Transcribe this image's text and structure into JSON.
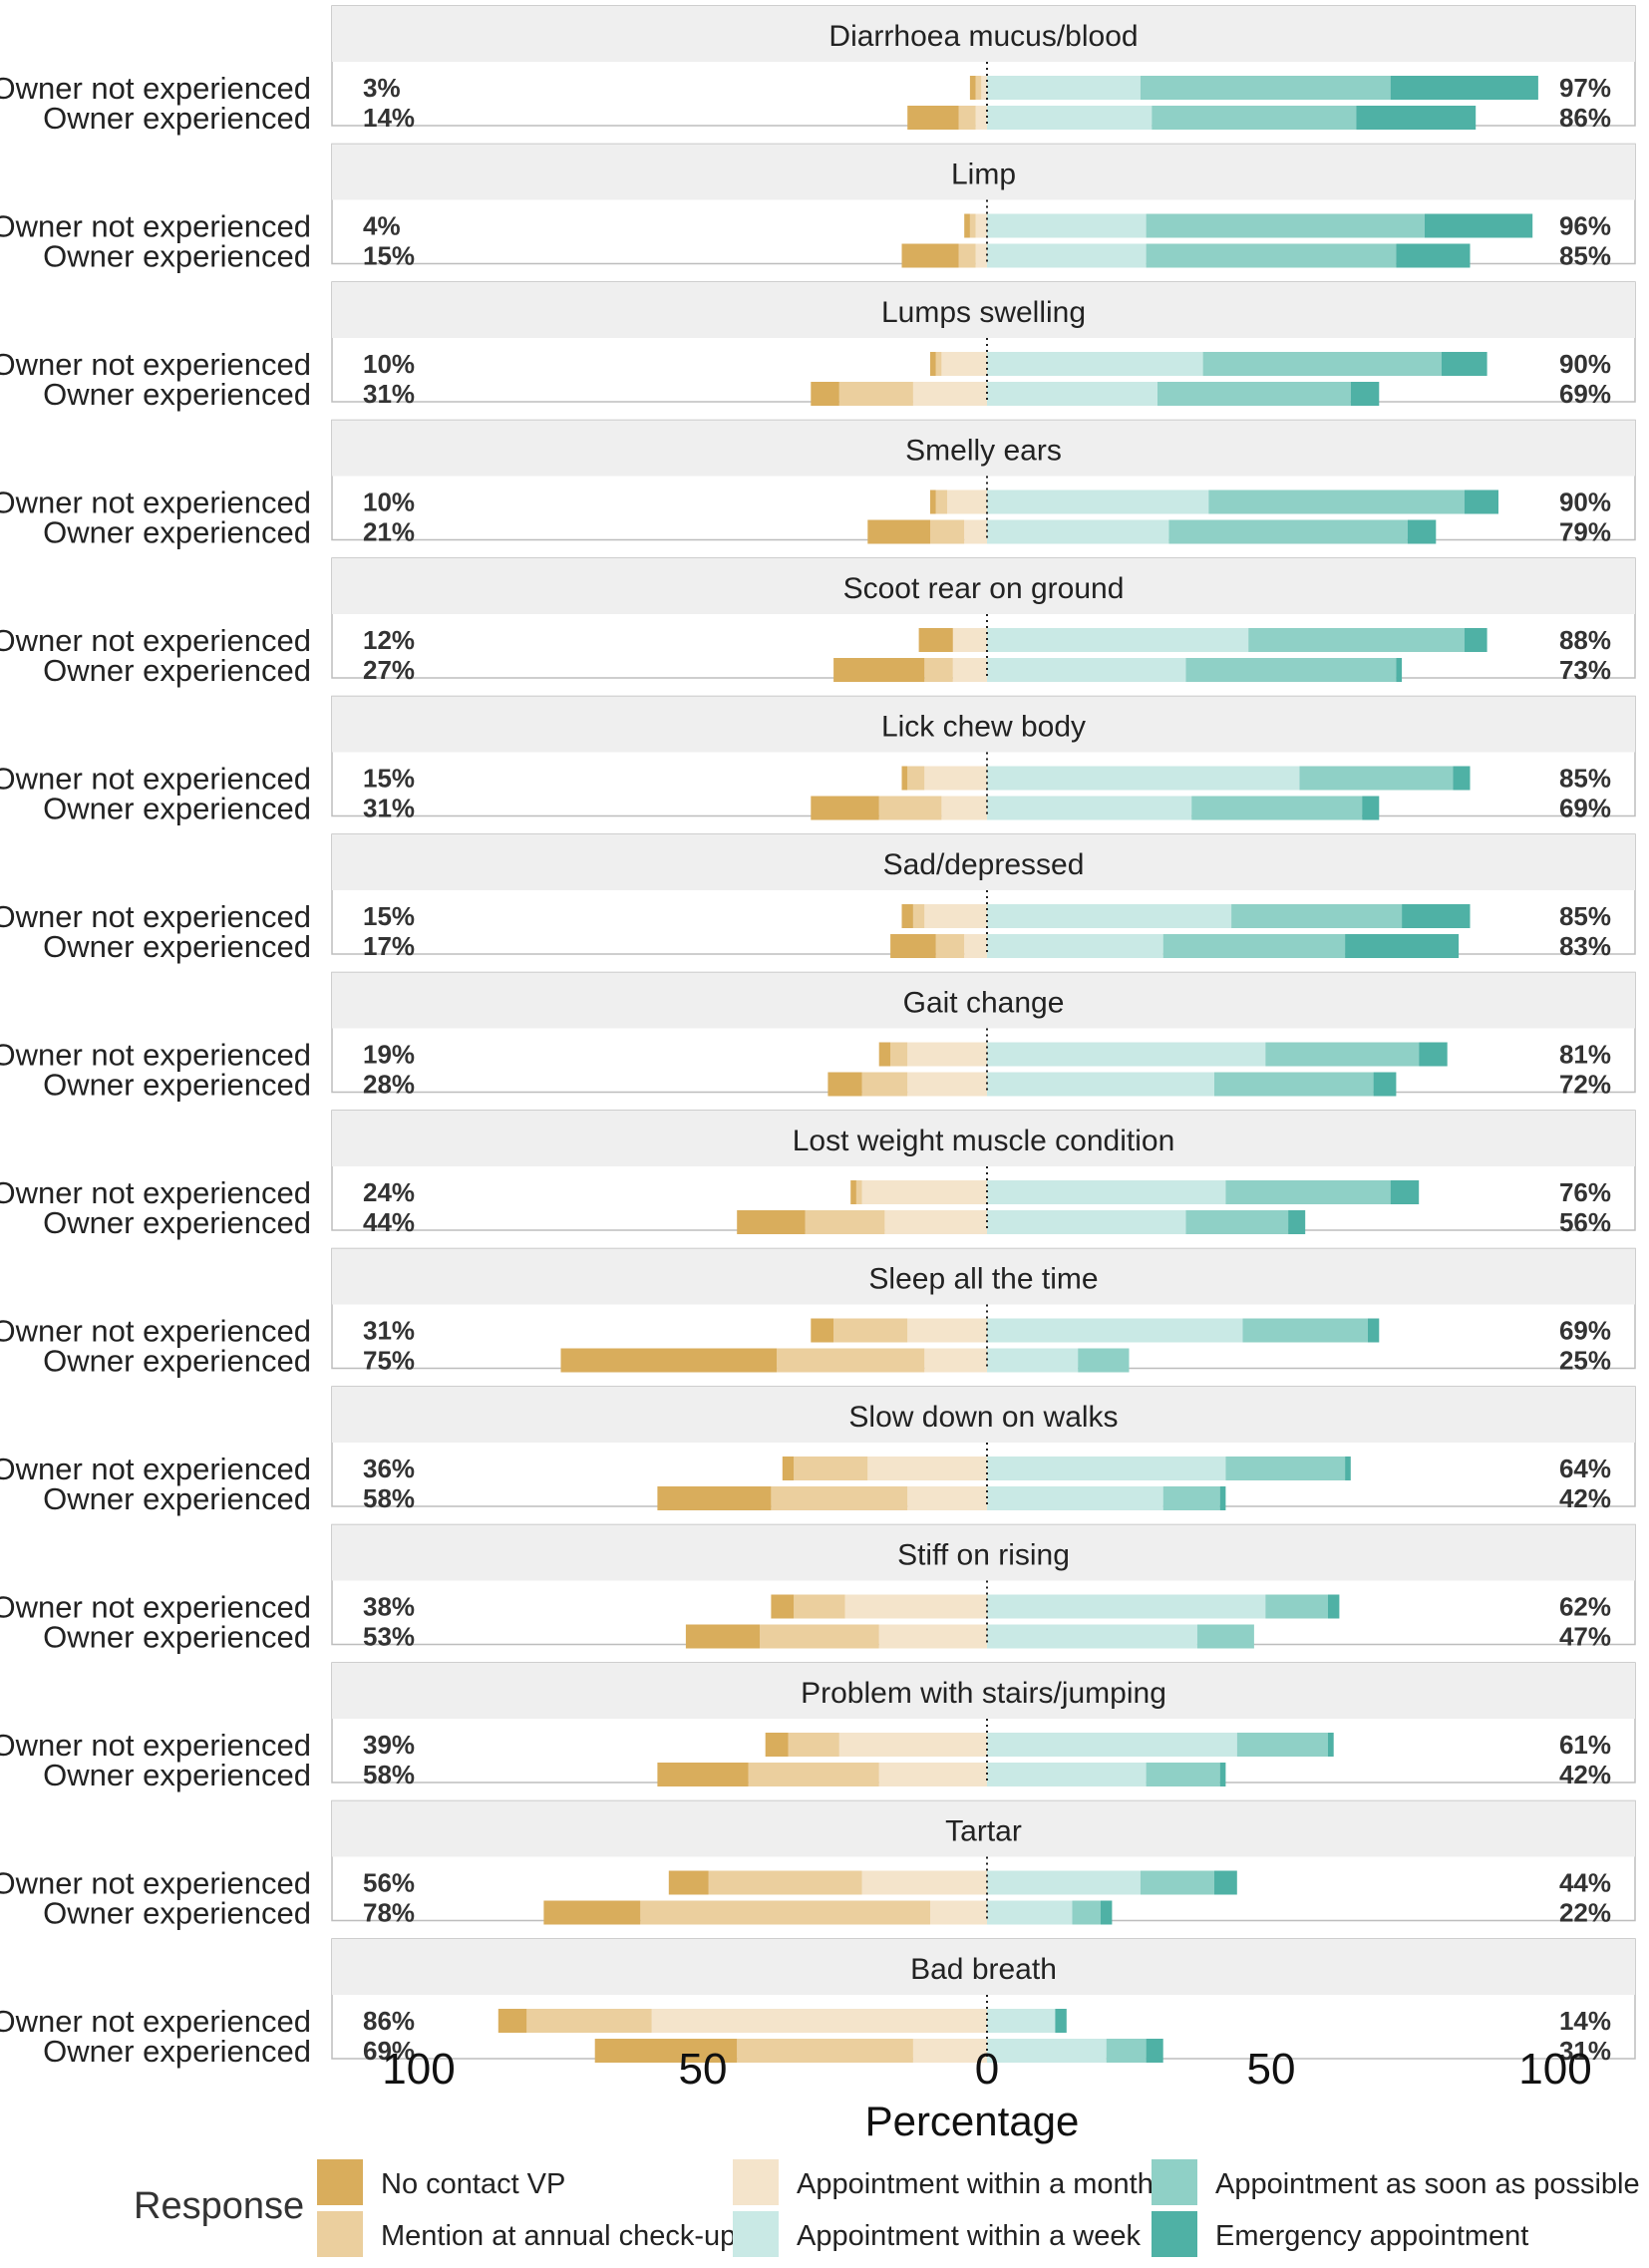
{
  "chart_data": {
    "type": "bar",
    "subtype": "diverging-stacked-bar",
    "xlabel": "Percentage",
    "xlim": [
      -100,
      100
    ],
    "x_ticks": [
      {
        "value": -100,
        "label": "100"
      },
      {
        "value": -50,
        "label": "50"
      },
      {
        "value": 0,
        "label": "0"
      },
      {
        "value": 50,
        "label": "50"
      },
      {
        "value": 100,
        "label": "100"
      }
    ],
    "legend": {
      "title": "Response",
      "position": "bottom",
      "items": [
        {
          "key": "no_contact",
          "label": "No contact VP",
          "color": "#d9ad5c"
        },
        {
          "key": "annual",
          "label": "Mention at annual check-up",
          "color": "#ebcf9e"
        },
        {
          "key": "month",
          "label": "Appointment within a month",
          "color": "#f4e4cb"
        },
        {
          "key": "week",
          "label": "Appointment within a week",
          "color": "#c9e9e5"
        },
        {
          "key": "asap",
          "label": "Appointment as soon as possible",
          "color": "#8fd0c6"
        },
        {
          "key": "emergency",
          "label": "Emergency appointment",
          "color": "#4fb1a5"
        }
      ]
    },
    "negative_order": [
      "month",
      "annual",
      "no_contact"
    ],
    "positive_order": [
      "week",
      "asap",
      "emergency"
    ],
    "panels": [
      {
        "title": "Diarrhoea mucus/blood",
        "rows": [
          {
            "label": "Owner not experienced",
            "left_pct": "3%",
            "right_pct": "97%",
            "no_contact": 1,
            "annual": 1,
            "month": 1,
            "week": 27,
            "asap": 44,
            "emergency": 26
          },
          {
            "label": "Owner experienced",
            "left_pct": "14%",
            "right_pct": "86%",
            "no_contact": 9,
            "annual": 3,
            "month": 2,
            "week": 29,
            "asap": 36,
            "emergency": 21
          }
        ]
      },
      {
        "title": "Limp",
        "rows": [
          {
            "label": "Owner not experienced",
            "left_pct": "4%",
            "right_pct": "96%",
            "no_contact": 1,
            "annual": 1,
            "month": 2,
            "week": 28,
            "asap": 49,
            "emergency": 19
          },
          {
            "label": "Owner experienced",
            "left_pct": "15%",
            "right_pct": "85%",
            "no_contact": 10,
            "annual": 3,
            "month": 2,
            "week": 28,
            "asap": 44,
            "emergency": 13
          }
        ]
      },
      {
        "title": "Lumps swelling",
        "rows": [
          {
            "label": "Owner not experienced",
            "left_pct": "10%",
            "right_pct": "90%",
            "no_contact": 1,
            "annual": 1,
            "month": 8,
            "week": 38,
            "asap": 42,
            "emergency": 8
          },
          {
            "label": "Owner experienced",
            "left_pct": "31%",
            "right_pct": "69%",
            "no_contact": 5,
            "annual": 13,
            "month": 13,
            "week": 30,
            "asap": 34,
            "emergency": 5
          }
        ]
      },
      {
        "title": "Smelly ears",
        "rows": [
          {
            "label": "Owner not experienced",
            "left_pct": "10%",
            "right_pct": "90%",
            "no_contact": 1,
            "annual": 2,
            "month": 7,
            "week": 39,
            "asap": 45,
            "emergency": 6
          },
          {
            "label": "Owner experienced",
            "left_pct": "21%",
            "right_pct": "79%",
            "no_contact": 11,
            "annual": 6,
            "month": 4,
            "week": 32,
            "asap": 42,
            "emergency": 5
          }
        ]
      },
      {
        "title": "Scoot rear on ground",
        "rows": [
          {
            "label": "Owner not experienced",
            "left_pct": "12%",
            "right_pct": "88%",
            "no_contact": 6,
            "annual": 0,
            "month": 6,
            "week": 46,
            "asap": 38,
            "emergency": 4
          },
          {
            "label": "Owner experienced",
            "left_pct": "27%",
            "right_pct": "73%",
            "no_contact": 16,
            "annual": 5,
            "month": 6,
            "week": 35,
            "asap": 37,
            "emergency": 1
          }
        ]
      },
      {
        "title": "Lick chew body",
        "rows": [
          {
            "label": "Owner not experienced",
            "left_pct": "15%",
            "right_pct": "85%",
            "no_contact": 1,
            "annual": 3,
            "month": 11,
            "week": 55,
            "asap": 27,
            "emergency": 3
          },
          {
            "label": "Owner experienced",
            "left_pct": "31%",
            "right_pct": "69%",
            "no_contact": 12,
            "annual": 11,
            "month": 8,
            "week": 36,
            "asap": 30,
            "emergency": 3
          }
        ]
      },
      {
        "title": "Sad/depressed",
        "rows": [
          {
            "label": "Owner not experienced",
            "left_pct": "15%",
            "right_pct": "85%",
            "no_contact": 2,
            "annual": 2,
            "month": 11,
            "week": 43,
            "asap": 30,
            "emergency": 12
          },
          {
            "label": "Owner experienced",
            "left_pct": "17%",
            "right_pct": "83%",
            "no_contact": 8,
            "annual": 5,
            "month": 4,
            "week": 31,
            "asap": 32,
            "emergency": 20
          }
        ]
      },
      {
        "title": "Gait change",
        "rows": [
          {
            "label": "Owner not experienced",
            "left_pct": "19%",
            "right_pct": "81%",
            "no_contact": 2,
            "annual": 3,
            "month": 14,
            "week": 49,
            "asap": 27,
            "emergency": 5
          },
          {
            "label": "Owner experienced",
            "left_pct": "28%",
            "right_pct": "72%",
            "no_contact": 6,
            "annual": 8,
            "month": 14,
            "week": 40,
            "asap": 28,
            "emergency": 4
          }
        ]
      },
      {
        "title": "Lost weight muscle condition",
        "rows": [
          {
            "label": "Owner not experienced",
            "left_pct": "24%",
            "right_pct": "76%",
            "no_contact": 1,
            "annual": 1,
            "month": 22,
            "week": 42,
            "asap": 29,
            "emergency": 5
          },
          {
            "label": "Owner experienced",
            "left_pct": "44%",
            "right_pct": "56%",
            "no_contact": 12,
            "annual": 14,
            "month": 18,
            "week": 35,
            "asap": 18,
            "emergency": 3
          }
        ]
      },
      {
        "title": "Sleep all the time",
        "rows": [
          {
            "label": "Owner not experienced",
            "left_pct": "31%",
            "right_pct": "69%",
            "no_contact": 4,
            "annual": 13,
            "month": 14,
            "week": 45,
            "asap": 22,
            "emergency": 2
          },
          {
            "label": "Owner experienced",
            "left_pct": "75%",
            "right_pct": "25%",
            "no_contact": 38,
            "annual": 26,
            "month": 11,
            "week": 16,
            "asap": 9,
            "emergency": 0
          }
        ]
      },
      {
        "title": "Slow down on walks",
        "rows": [
          {
            "label": "Owner not experienced",
            "left_pct": "36%",
            "right_pct": "64%",
            "no_contact": 2,
            "annual": 13,
            "month": 21,
            "week": 42,
            "asap": 21,
            "emergency": 1
          },
          {
            "label": "Owner experienced",
            "left_pct": "58%",
            "right_pct": "42%",
            "no_contact": 20,
            "annual": 24,
            "month": 14,
            "week": 31,
            "asap": 10,
            "emergency": 1
          }
        ]
      },
      {
        "title": "Stiff on rising",
        "rows": [
          {
            "label": "Owner not experienced",
            "left_pct": "38%",
            "right_pct": "62%",
            "no_contact": 4,
            "annual": 9,
            "month": 25,
            "week": 49,
            "asap": 11,
            "emergency": 2
          },
          {
            "label": "Owner experienced",
            "left_pct": "53%",
            "right_pct": "47%",
            "no_contact": 13,
            "annual": 21,
            "month": 19,
            "week": 37,
            "asap": 10,
            "emergency": 0
          }
        ]
      },
      {
        "title": "Problem with stairs/jumping",
        "rows": [
          {
            "label": "Owner not experienced",
            "left_pct": "39%",
            "right_pct": "61%",
            "no_contact": 4,
            "annual": 9,
            "month": 26,
            "week": 44,
            "asap": 16,
            "emergency": 1
          },
          {
            "label": "Owner experienced",
            "left_pct": "58%",
            "right_pct": "42%",
            "no_contact": 16,
            "annual": 23,
            "month": 19,
            "week": 28,
            "asap": 13,
            "emergency": 1
          }
        ]
      },
      {
        "title": "Tartar",
        "rows": [
          {
            "label": "Owner not experienced",
            "left_pct": "56%",
            "right_pct": "44%",
            "no_contact": 7,
            "annual": 27,
            "month": 22,
            "week": 27,
            "asap": 13,
            "emergency": 4
          },
          {
            "label": "Owner experienced",
            "left_pct": "78%",
            "right_pct": "22%",
            "no_contact": 17,
            "annual": 51,
            "month": 10,
            "week": 15,
            "asap": 5,
            "emergency": 2
          }
        ]
      },
      {
        "title": "Bad breath",
        "rows": [
          {
            "label": "Owner not experienced",
            "left_pct": "86%",
            "right_pct": "14%",
            "no_contact": 5,
            "annual": 22,
            "month": 59,
            "week": 12,
            "asap": 0,
            "emergency": 2
          },
          {
            "label": "Owner experienced",
            "left_pct": "69%",
            "right_pct": "31%",
            "no_contact": 25,
            "annual": 31,
            "month": 13,
            "week": 21,
            "asap": 7,
            "emergency": 3
          }
        ]
      }
    ]
  }
}
